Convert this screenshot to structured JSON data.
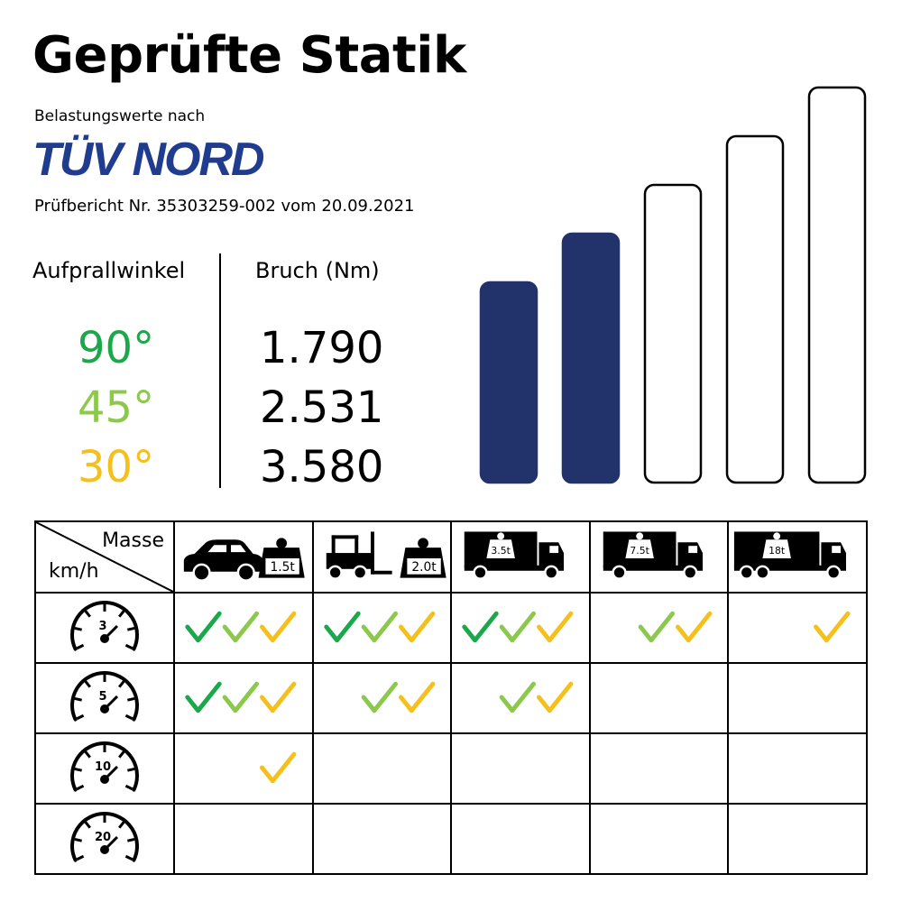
{
  "title": "Geprüfte Statik",
  "subtitle": "Belastungswerte nach",
  "brand": "TÜV NORD",
  "report": "Prüfbericht Nr. 35303259-002 vom 20.09.2021",
  "table_headers": {
    "angle": "Aufprallwinkel",
    "break": "Bruch (Nm)"
  },
  "angles": [
    {
      "angle": "90°",
      "value": "1.790",
      "color": "#1aa84a"
    },
    {
      "angle": "45°",
      "value": "2.531",
      "color": "#8cc84b"
    },
    {
      "angle": "30°",
      "value": "3.580",
      "color": "#f5bf1c"
    }
  ],
  "rating_bars": {
    "filled": 2,
    "total": 5,
    "fill_color": "#22336b"
  },
  "grid": {
    "corner_mass": "Masse",
    "corner_speed": "km/h",
    "vehicles": [
      {
        "icon": "car-icon",
        "weight": "1.5t"
      },
      {
        "icon": "forklift-icon",
        "weight": "2.0t"
      },
      {
        "icon": "truck-icon",
        "weight": "3.5t"
      },
      {
        "icon": "truck-icon",
        "weight": "7.5t"
      },
      {
        "icon": "truck-icon",
        "weight": "18t"
      }
    ],
    "speeds": [
      "3",
      "5",
      "10",
      "20"
    ],
    "checks": [
      [
        [
          true,
          true,
          true
        ],
        [
          true,
          true,
          true
        ],
        [
          true,
          true,
          true
        ],
        [
          false,
          true,
          true
        ],
        [
          false,
          false,
          true
        ]
      ],
      [
        [
          true,
          true,
          true
        ],
        [
          false,
          true,
          true
        ],
        [
          false,
          true,
          true
        ],
        [
          false,
          false,
          false
        ],
        [
          false,
          false,
          false
        ]
      ],
      [
        [
          false,
          false,
          true
        ],
        [
          false,
          false,
          false
        ],
        [
          false,
          false,
          false
        ],
        [
          false,
          false,
          false
        ],
        [
          false,
          false,
          false
        ]
      ],
      [
        [
          false,
          false,
          false
        ],
        [
          false,
          false,
          false
        ],
        [
          false,
          false,
          false
        ],
        [
          false,
          false,
          false
        ],
        [
          false,
          false,
          false
        ]
      ]
    ]
  }
}
